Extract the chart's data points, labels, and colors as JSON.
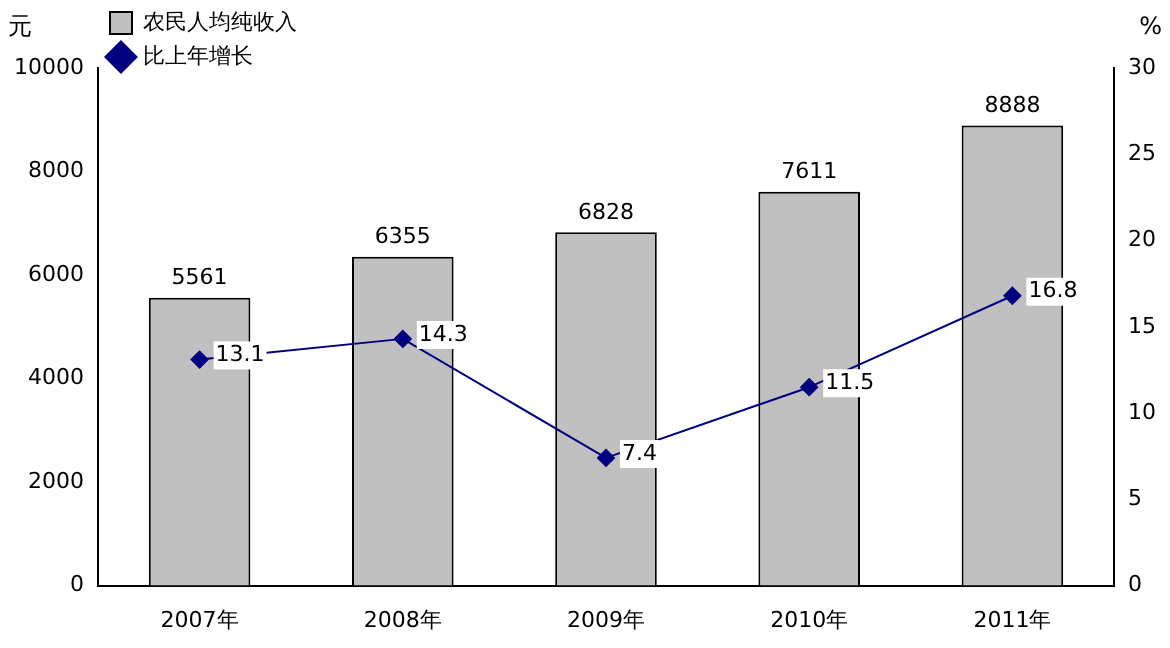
{
  "chart_data": {
    "type": "bar",
    "ylabel": "元",
    "y2label": "%",
    "categories": [
      "2007年",
      "2008年",
      "2009年",
      "2010年",
      "2011年"
    ],
    "series": [
      {
        "name": "农民人均纯收入",
        "color": "#c0c0c0",
        "values": [
          5561,
          6355,
          6828,
          7611,
          8888
        ]
      },
      {
        "name": "比上年增长",
        "type": "line",
        "axis": "y2",
        "color": "#000080",
        "marker": "diamond",
        "values": [
          13.1,
          14.3,
          7.4,
          11.5,
          16.8
        ]
      }
    ],
    "ylim": [
      0,
      10000
    ],
    "yticks": [
      0,
      2000,
      4000,
      6000,
      8000,
      10000
    ],
    "y2lim": [
      0,
      30
    ],
    "y2ticks": [
      0,
      5,
      10,
      15,
      20,
      25,
      30
    ],
    "grid": false,
    "legend": "top left",
    "data_labels": true
  }
}
